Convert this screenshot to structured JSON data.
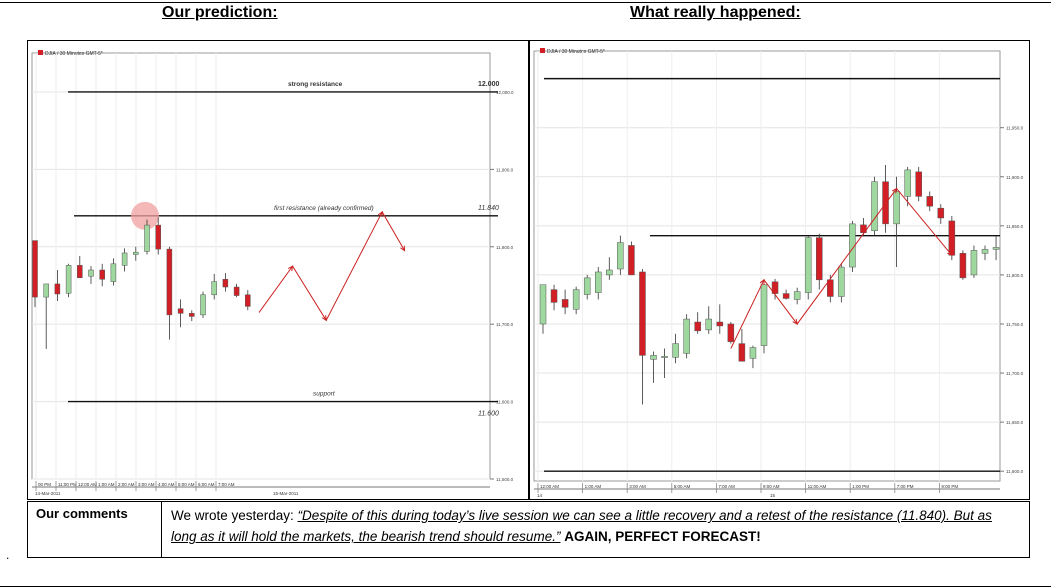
{
  "headings": {
    "left": "Our prediction:",
    "right": "What really happened:"
  },
  "comments": {
    "label": "Our comments",
    "intro": "We wrote yesterday: ",
    "quote": "“Despite of this during today’s live session we can see a little recovery and a retest of the resistance (11.840). But as long as it will hold the markets, the bearish trend should resume.",
    "closing_quote": "”",
    "emphasis": "AGAIN, PERFECT FORECAST!"
  },
  "colors": {
    "bull": "#9fd89f",
    "bear": "#d21f26",
    "arrow": "#cc2222",
    "marker": "#f2a0a0"
  },
  "chart_data": [
    {
      "type": "candlestick",
      "panel": "prediction",
      "instrument_label": "DJIA / 30 Minutes GMT-5*",
      "ylim": [
        11500,
        12040
      ],
      "y_ticks": [
        "12,000.0",
        "11,900.0",
        "11,800.0",
        "11,700.0",
        "11,600.0",
        "11,500.0"
      ],
      "x_tick_labels": [
        "00 PM",
        "11:00 PM",
        "12:00 AM",
        "1:00 AM",
        "2:00 AM",
        "3:00 AM",
        "4:00 AM",
        "5:00 AM",
        "6:00 AM",
        "7:00 AM"
      ],
      "date_labels": [
        "14-Mar-2011",
        "15-Mar-2011"
      ],
      "levels": [
        {
          "name": "strong resistance",
          "value": 12000,
          "value_label": "12.000"
        },
        {
          "name": "first resistance (already confirmed)",
          "value": 11840,
          "value_label": "11.840"
        },
        {
          "name": "support",
          "value": 11600,
          "value_label": "11.600"
        }
      ],
      "candles": [
        {
          "o": 11808,
          "h": 11808,
          "l": 11722,
          "c": 11735
        },
        {
          "o": 11735,
          "h": 11748,
          "l": 11668,
          "c": 11752
        },
        {
          "o": 11752,
          "h": 11770,
          "l": 11730,
          "c": 11739
        },
        {
          "o": 11740,
          "h": 11778,
          "l": 11735,
          "c": 11776
        },
        {
          "o": 11776,
          "h": 11788,
          "l": 11760,
          "c": 11760
        },
        {
          "o": 11762,
          "h": 11775,
          "l": 11752,
          "c": 11770
        },
        {
          "o": 11770,
          "h": 11778,
          "l": 11749,
          "c": 11758
        },
        {
          "o": 11755,
          "h": 11785,
          "l": 11750,
          "c": 11778
        },
        {
          "o": 11776,
          "h": 11798,
          "l": 11768,
          "c": 11792
        },
        {
          "o": 11790,
          "h": 11800,
          "l": 11782,
          "c": 11793
        },
        {
          "o": 11794,
          "h": 11835,
          "l": 11790,
          "c": 11828
        },
        {
          "o": 11828,
          "h": 11838,
          "l": 11790,
          "c": 11797
        },
        {
          "o": 11797,
          "h": 11800,
          "l": 11680,
          "c": 11712
        },
        {
          "o": 11720,
          "h": 11732,
          "l": 11696,
          "c": 11714
        },
        {
          "o": 11714,
          "h": 11718,
          "l": 11704,
          "c": 11710
        },
        {
          "o": 11712,
          "h": 11742,
          "l": 11708,
          "c": 11738
        },
        {
          "o": 11738,
          "h": 11765,
          "l": 11732,
          "c": 11755
        },
        {
          "o": 11758,
          "h": 11766,
          "l": 11742,
          "c": 11748
        },
        {
          "o": 11748,
          "h": 11752,
          "l": 11735,
          "c": 11737
        },
        {
          "o": 11738,
          "h": 11744,
          "l": 11718,
          "c": 11723
        }
      ],
      "forecast_path": [
        {
          "bar": 20,
          "value": 11715
        },
        {
          "bar": 23,
          "value": 11775
        },
        {
          "bar": 26,
          "value": 11705
        },
        {
          "bar": 31,
          "value": 11845
        },
        {
          "bar": 33,
          "value": 11795
        }
      ]
    },
    {
      "type": "candlestick",
      "panel": "actual",
      "instrument_label": "DJIA / 30 Minutes GMT-5*",
      "ylim": [
        11590,
        12020
      ],
      "y_ticks": [
        "11,950.0",
        "11,900.0",
        "11,850.0",
        "11,800.0",
        "11,750.0",
        "11,700.0",
        "11,650.0",
        "11,600.0"
      ],
      "x_tick_labels": [
        "12:00 AM",
        "1:00 AM",
        "3:00 AM",
        "5:00 AM",
        "7:00 AM",
        "9:00 AM",
        "11:00 AM",
        "1:00 PM",
        "7:00 PM",
        "9:00 PM"
      ],
      "date_labels": [
        "14",
        "15"
      ],
      "levels": [
        {
          "value": 12000
        },
        {
          "value": 11840
        },
        {
          "value": 11600
        }
      ],
      "candles": [
        {
          "o": 11750,
          "h": 11790,
          "l": 11740,
          "c": 11790
        },
        {
          "o": 11785,
          "h": 11790,
          "l": 11764,
          "c": 11772
        },
        {
          "o": 11775,
          "h": 11785,
          "l": 11760,
          "c": 11767
        },
        {
          "o": 11765,
          "h": 11788,
          "l": 11760,
          "c": 11785
        },
        {
          "o": 11780,
          "h": 11800,
          "l": 11775,
          "c": 11797
        },
        {
          "o": 11782,
          "h": 11808,
          "l": 11775,
          "c": 11803
        },
        {
          "o": 11800,
          "h": 11818,
          "l": 11795,
          "c": 11805
        },
        {
          "o": 11806,
          "h": 11840,
          "l": 11800,
          "c": 11833
        },
        {
          "o": 11830,
          "h": 11834,
          "l": 11800,
          "c": 11800
        },
        {
          "o": 11803,
          "h": 11806,
          "l": 11668,
          "c": 11718
        },
        {
          "o": 11714,
          "h": 11722,
          "l": 11690,
          "c": 11718
        },
        {
          "o": 11716,
          "h": 11725,
          "l": 11695,
          "c": 11717
        },
        {
          "o": 11716,
          "h": 11740,
          "l": 11710,
          "c": 11730
        },
        {
          "o": 11720,
          "h": 11760,
          "l": 11715,
          "c": 11755
        },
        {
          "o": 11752,
          "h": 11762,
          "l": 11740,
          "c": 11743
        },
        {
          "o": 11744,
          "h": 11768,
          "l": 11740,
          "c": 11755
        },
        {
          "o": 11752,
          "h": 11770,
          "l": 11740,
          "c": 11748
        },
        {
          "o": 11750,
          "h": 11752,
          "l": 11730,
          "c": 11732
        },
        {
          "o": 11730,
          "h": 11745,
          "l": 11712,
          "c": 11712
        },
        {
          "o": 11715,
          "h": 11728,
          "l": 11705,
          "c": 11726
        },
        {
          "o": 11728,
          "h": 11793,
          "l": 11720,
          "c": 11790
        },
        {
          "o": 11793,
          "h": 11796,
          "l": 11775,
          "c": 11781
        },
        {
          "o": 11781,
          "h": 11785,
          "l": 11775,
          "c": 11776
        },
        {
          "o": 11775,
          "h": 11787,
          "l": 11770,
          "c": 11783
        },
        {
          "o": 11782,
          "h": 11840,
          "l": 11775,
          "c": 11838
        },
        {
          "o": 11838,
          "h": 11842,
          "l": 11785,
          "c": 11795
        },
        {
          "o": 11795,
          "h": 11800,
          "l": 11772,
          "c": 11778
        },
        {
          "o": 11778,
          "h": 11812,
          "l": 11772,
          "c": 11808
        },
        {
          "o": 11808,
          "h": 11855,
          "l": 11803,
          "c": 11852
        },
        {
          "o": 11851,
          "h": 11858,
          "l": 11840,
          "c": 11843
        },
        {
          "o": 11845,
          "h": 11900,
          "l": 11840,
          "c": 11895
        },
        {
          "o": 11895,
          "h": 11912,
          "l": 11843,
          "c": 11852
        },
        {
          "o": 11852,
          "h": 11900,
          "l": 11808,
          "c": 11885
        },
        {
          "o": 11880,
          "h": 11910,
          "l": 11870,
          "c": 11907
        },
        {
          "o": 11905,
          "h": 11910,
          "l": 11875,
          "c": 11880
        },
        {
          "o": 11880,
          "h": 11885,
          "l": 11865,
          "c": 11870
        },
        {
          "o": 11868,
          "h": 11872,
          "l": 11852,
          "c": 11858
        },
        {
          "o": 11855,
          "h": 11860,
          "l": 11815,
          "c": 11820
        },
        {
          "o": 11822,
          "h": 11825,
          "l": 11795,
          "c": 11797
        },
        {
          "o": 11800,
          "h": 11830,
          "l": 11797,
          "c": 11825
        },
        {
          "o": 11822,
          "h": 11830,
          "l": 11815,
          "c": 11826
        },
        {
          "o": 11826,
          "h": 11840,
          "l": 11815,
          "c": 11828
        }
      ],
      "forecast_path": [
        {
          "bar": 17,
          "value": 11725
        },
        {
          "bar": 20,
          "value": 11795
        },
        {
          "bar": 23,
          "value": 11750
        },
        {
          "bar": 32,
          "value": 11888
        },
        {
          "bar": 37,
          "value": 11820
        }
      ]
    }
  ]
}
